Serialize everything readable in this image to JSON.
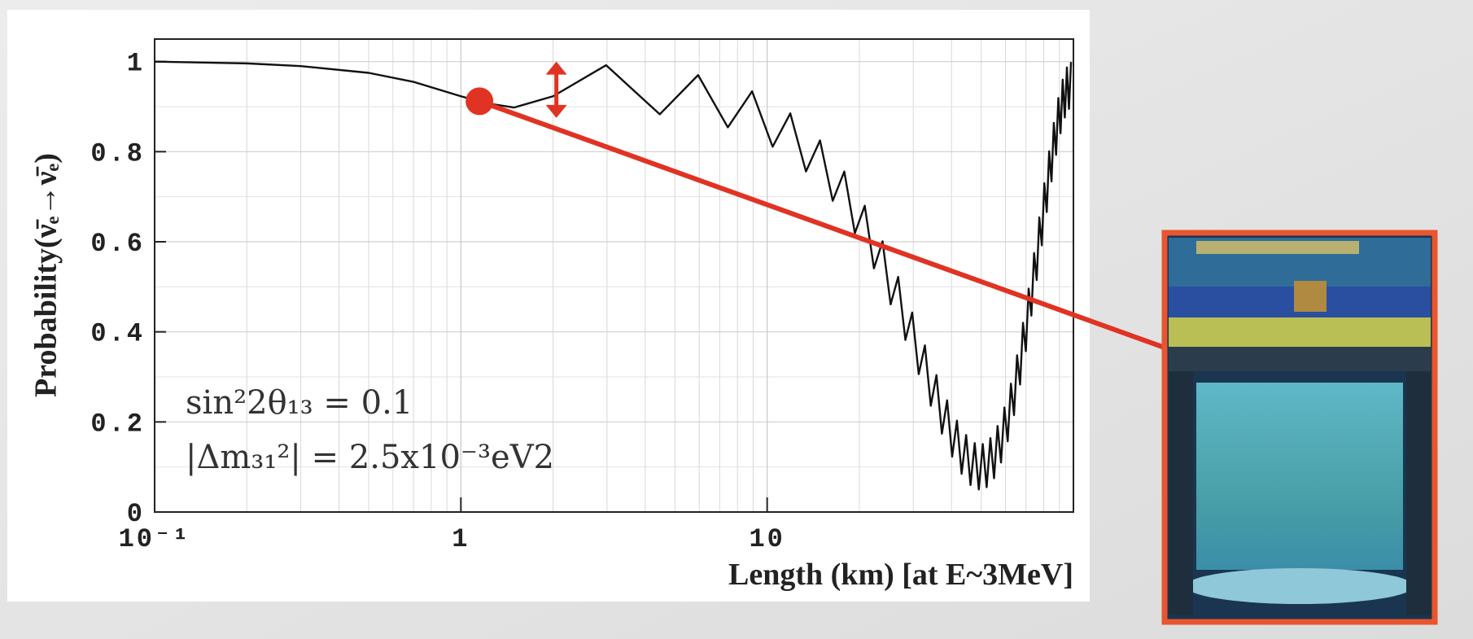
{
  "chart_data": {
    "type": "line",
    "xlabel": "Length (km) [at E~3MeV]",
    "ylabel": "Probability(ν̄ₑ→ν̄ₑ)",
    "annotations": [
      "sin²2θ₁₃ = 0.1",
      "|Δm₃₁²| = 2.5x10⁻³eV2"
    ],
    "x": [
      0.1,
      0.2,
      0.3,
      0.5,
      0.7,
      1.0,
      1.2,
      1.49,
      2.0,
      2.98,
      4.46,
      5.95,
      7.44,
      8.93,
      10.42,
      11.9,
      13.39,
      14.88,
      16.37,
      17.86,
      19.34,
      20.83,
      22.32,
      23.81,
      25.3,
      26.78,
      28.27,
      29.76,
      31.25,
      32.74,
      34.22,
      35.71,
      37.2,
      38.69,
      40.18,
      41.66,
      43.15,
      44.64,
      46.13,
      47.62,
      49.1,
      50.59,
      52.08,
      53.57,
      55.06,
      56.54,
      58.03,
      59.52,
      61.01,
      62.5,
      63.98,
      65.47,
      66.96,
      68.45,
      69.94,
      71.42,
      72.91,
      74.4,
      75.89,
      77.38,
      78.86,
      80.35,
      81.84,
      83.33,
      84.82,
      86.3,
      87.79,
      89.28,
      90.77,
      92.26,
      93.74,
      95.23,
      96.72,
      98.21
    ],
    "values": [
      1.0,
      0.996,
      0.99,
      0.975,
      0.955,
      0.923,
      0.908,
      0.898,
      0.923,
      0.992,
      0.883,
      0.97,
      0.854,
      0.934,
      0.811,
      0.885,
      0.756,
      0.825,
      0.691,
      0.756,
      0.619,
      0.68,
      0.541,
      0.601,
      0.461,
      0.522,
      0.382,
      0.443,
      0.306,
      0.37,
      0.236,
      0.304,
      0.174,
      0.248,
      0.123,
      0.203,
      0.085,
      0.171,
      0.06,
      0.153,
      0.05,
      0.151,
      0.055,
      0.164,
      0.075,
      0.191,
      0.11,
      0.232,
      0.157,
      0.285,
      0.215,
      0.348,
      0.283,
      0.42,
      0.357,
      0.496,
      0.436,
      0.575,
      0.515,
      0.654,
      0.592,
      0.73,
      0.666,
      0.801,
      0.734,
      0.864,
      0.793,
      0.919,
      0.841,
      0.96,
      0.876,
      0.987,
      0.895,
      0.999
    ],
    "color": "#111111",
    "log_x": true,
    "xlim": [
      0.1,
      100
    ],
    "ylim": [
      0,
      1.05
    ],
    "xticks": [
      {
        "value": 0.1,
        "label": "10⁻¹"
      },
      1,
      10
    ],
    "minor_xticks": [
      0.2,
      0.3,
      0.4,
      0.5,
      0.6,
      0.7,
      0.8,
      0.9,
      2,
      3,
      4,
      5,
      6,
      7,
      8,
      9,
      20,
      30,
      40,
      50,
      60,
      70,
      80,
      90
    ],
    "yticks": [
      0,
      0.2,
      0.4,
      0.6,
      0.8,
      1
    ],
    "minor_yticks": [
      0.1,
      0.3,
      0.5,
      0.7,
      0.9
    ],
    "grid": true,
    "highlight": {
      "x": 1.15,
      "y": 0.912,
      "color": "#e03323"
    },
    "arrow": {
      "x": 2.05,
      "from": 0.875,
      "to": 1.0,
      "color": "#e03323"
    }
  }
}
